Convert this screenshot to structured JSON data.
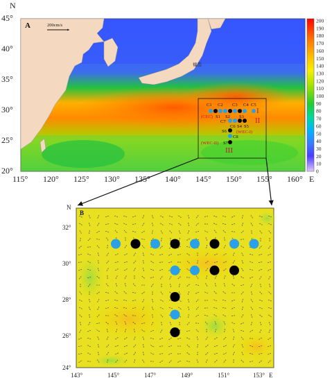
{
  "panel_a": {
    "label": "A",
    "scale_label": "200cm/s",
    "place_label": "福岛",
    "lat_ticks": [
      "45°",
      "40°",
      "35°",
      "30°",
      "25°",
      "20°"
    ],
    "lon_ticks": [
      "115°",
      "120°",
      "125°",
      "130°",
      "135°",
      "140°",
      "145°",
      "150°",
      "155°",
      "160°"
    ],
    "n_label": "N",
    "e_label": "E",
    "colorbar": {
      "ticks": [
        "200",
        "190",
        "180",
        "170",
        "160",
        "150",
        "140",
        "130",
        "120",
        "110",
        "100",
        "90",
        "80",
        "70",
        "60",
        "50",
        "40",
        "30",
        "20",
        "10",
        "0"
      ],
      "colors": [
        "#ff0000",
        "#ff6a00",
        "#ffc000",
        "#f4f000",
        "#9be000",
        "#22cc33",
        "#00d8a0",
        "#00b4ff",
        "#3a7aff",
        "#4b3cff",
        "#9a7aff",
        "#d8b8ff"
      ]
    },
    "stations_top": [
      "C1",
      "C2",
      "C3",
      "C4",
      "C5"
    ],
    "stations_mid": [
      "S1",
      "S2",
      "S3"
    ],
    "stations_mid2": [
      "C6",
      "S4",
      "S5"
    ],
    "stations_low": [
      "C7",
      "S6",
      "C8",
      "S7"
    ],
    "region_labels": [
      "(CEC)",
      "(WEC-I)",
      "(WEC-II)"
    ],
    "roman": [
      "I",
      "II",
      "III"
    ]
  },
  "panel_b": {
    "label": "B",
    "lat_ticks": [
      "32°",
      "30°",
      "28°",
      "26°",
      "24°"
    ],
    "lon_ticks": [
      "143°",
      "145°",
      "147°",
      "149°",
      "151°",
      "153°"
    ],
    "n_label": "N",
    "e_label": "E",
    "stations": [
      {
        "lon": 145.0,
        "lat": 31.0,
        "color": "blue"
      },
      {
        "lon": 146.0,
        "lat": 31.0,
        "color": "black"
      },
      {
        "lon": 147.0,
        "lat": 31.0,
        "color": "blue"
      },
      {
        "lon": 148.0,
        "lat": 31.0,
        "color": "black"
      },
      {
        "lon": 149.0,
        "lat": 31.0,
        "color": "blue"
      },
      {
        "lon": 150.0,
        "lat": 31.0,
        "color": "black"
      },
      {
        "lon": 151.0,
        "lat": 31.0,
        "color": "blue"
      },
      {
        "lon": 152.0,
        "lat": 31.0,
        "color": "blue"
      },
      {
        "lon": 148.0,
        "lat": 29.5,
        "color": "blue"
      },
      {
        "lon": 149.0,
        "lat": 29.5,
        "color": "blue"
      },
      {
        "lon": 150.0,
        "lat": 29.5,
        "color": "black"
      },
      {
        "lon": 151.0,
        "lat": 29.5,
        "color": "black"
      },
      {
        "lon": 148.0,
        "lat": 28.0,
        "color": "black"
      },
      {
        "lon": 148.0,
        "lat": 27.0,
        "color": "blue"
      },
      {
        "lon": 148.0,
        "lat": 26.0,
        "color": "black"
      }
    ]
  },
  "colors": {
    "station_blue": "#2aa0e8",
    "station_black": "#000000",
    "land": "#f4d8c0",
    "arrow": "#111111",
    "roman_red": "#c8102e"
  }
}
